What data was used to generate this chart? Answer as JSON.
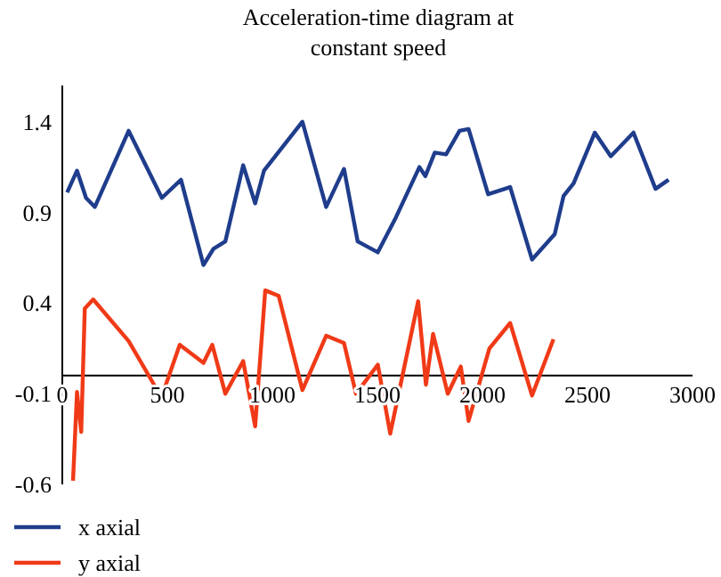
{
  "chart_data": {
    "type": "line",
    "title": "Acceleration-time diagram at constant speed",
    "xlim": [
      0,
      3000
    ],
    "xticks": [
      0,
      500,
      1000,
      1500,
      2000,
      2500,
      3000
    ],
    "ylim": [
      -0.6,
      1.6
    ],
    "yticks": [
      -0.6,
      -0.1,
      0.4,
      0.9,
      1.4
    ],
    "grid": false,
    "legend": "bottom",
    "marker": "none",
    "line_style": "solid",
    "series": [
      {
        "name": "x axial",
        "color": "#1f3d8c",
        "x": [
          23,
          70,
          113,
          155,
          316,
          474,
          565,
          672,
          720,
          776,
          861,
          918,
          960,
          1143,
          1256,
          1341,
          1406,
          1502,
          1587,
          1700,
          1728,
          1773,
          1827,
          1891,
          1934,
          2027,
          2132,
          2236,
          2344,
          2386,
          2434,
          2535,
          2611,
          2719,
          2824,
          2886
        ],
        "values": [
          1.01,
          1.13,
          0.98,
          0.93,
          1.35,
          0.98,
          1.08,
          0.61,
          0.7,
          0.74,
          1.16,
          0.95,
          1.13,
          1.4,
          0.93,
          1.14,
          0.74,
          0.68,
          0.87,
          1.15,
          1.1,
          1.23,
          1.22,
          1.35,
          1.36,
          1.0,
          1.04,
          0.64,
          0.78,
          0.99,
          1.06,
          1.34,
          1.21,
          1.34,
          1.03,
          1.08
        ]
      },
      {
        "name": "y axial",
        "color": "#f03a17",
        "x": [
          51,
          70,
          90,
          107,
          147,
          316,
          472,
          559,
          672,
          714,
          776,
          861,
          918,
          966,
          1030,
          1143,
          1256,
          1341,
          1398,
          1502,
          1561,
          1694,
          1731,
          1765,
          1835,
          1897,
          1934,
          2033,
          2132,
          2236,
          2338
        ],
        "values": [
          -0.58,
          -0.09,
          -0.31,
          0.37,
          0.42,
          0.19,
          -0.12,
          0.17,
          0.07,
          0.17,
          -0.1,
          0.08,
          -0.28,
          0.47,
          0.44,
          -0.08,
          0.22,
          0.18,
          -0.1,
          0.06,
          -0.32,
          0.41,
          -0.05,
          0.23,
          -0.1,
          0.05,
          -0.25,
          0.15,
          0.29,
          -0.11,
          0.2
        ]
      }
    ]
  }
}
